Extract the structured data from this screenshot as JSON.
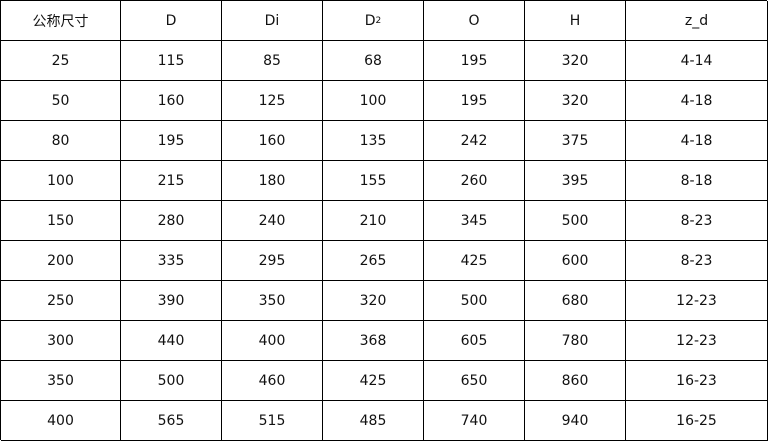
{
  "table": {
    "headers": [
      "公称尺寸",
      "D",
      "Di",
      "D",
      "O",
      "H",
      "z_d"
    ],
    "header_d2_subscript": "2",
    "rows": [
      [
        "25",
        "115",
        "85",
        "68",
        "195",
        "320",
        "4-14"
      ],
      [
        "50",
        "160",
        "125",
        "100",
        "195",
        "320",
        "4-18"
      ],
      [
        "80",
        "195",
        "160",
        "135",
        "242",
        "375",
        "4-18"
      ],
      [
        "100",
        "215",
        "180",
        "155",
        "260",
        "395",
        "8-18"
      ],
      [
        "150",
        "280",
        "240",
        "210",
        "345",
        "500",
        "8-23"
      ],
      [
        "200",
        "335",
        "295",
        "265",
        "425",
        "600",
        "8-23"
      ],
      [
        "250",
        "390",
        "350",
        "320",
        "500",
        "680",
        "12-23"
      ],
      [
        "300",
        "440",
        "400",
        "368",
        "605",
        "780",
        "12-23"
      ],
      [
        "350",
        "500",
        "460",
        "425",
        "650",
        "860",
        "16-23"
      ],
      [
        "400",
        "565",
        "515",
        "485",
        "740",
        "940",
        "16-25"
      ]
    ]
  }
}
